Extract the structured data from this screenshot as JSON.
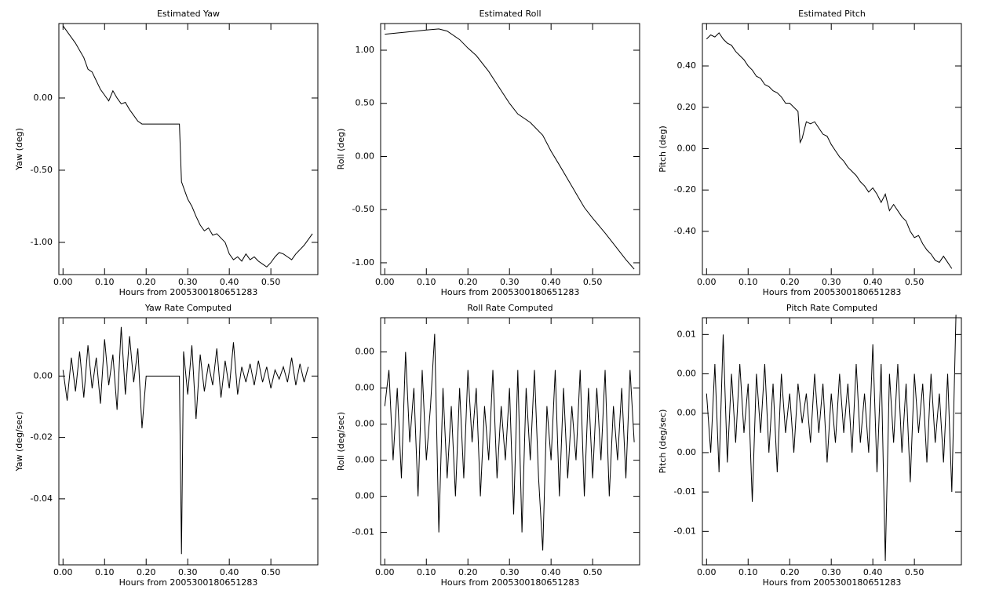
{
  "chart_data": [
    {
      "type": "line",
      "title": "Estimated Yaw",
      "x_label": "Hours from 2005300180651283",
      "y_label": "Yaw (deg)",
      "color": "#000000",
      "xlim": [
        -0.01,
        0.613
      ],
      "ylim": [
        -1.223,
        0.516
      ],
      "xticks": [
        {
          "value": 0,
          "label": "0.00"
        },
        {
          "value": 0.1,
          "label": "0.10"
        },
        {
          "value": 0.2,
          "label": "0.20"
        },
        {
          "value": 0.3,
          "label": "0.30"
        },
        {
          "value": 0.4,
          "label": "0.40"
        },
        {
          "value": 0.5,
          "label": "0.50"
        }
      ],
      "yticks": [
        {
          "value": 0,
          "label": "0.00"
        },
        {
          "value": -0.5,
          "label": "-0.50"
        },
        {
          "value": -1,
          "label": "-1.00"
        }
      ],
      "x": [
        0,
        0.01,
        0.02,
        0.03,
        0.04,
        0.05,
        0.06,
        0.07,
        0.08,
        0.09,
        0.1,
        0.11,
        0.12,
        0.13,
        0.14,
        0.15,
        0.16,
        0.17,
        0.18,
        0.19,
        0.2,
        0.21,
        0.22,
        0.23,
        0.24,
        0.25,
        0.26,
        0.27,
        0.28,
        0.285,
        0.29,
        0.3,
        0.31,
        0.32,
        0.33,
        0.34,
        0.35,
        0.36,
        0.37,
        0.38,
        0.39,
        0.4,
        0.41,
        0.42,
        0.43,
        0.44,
        0.45,
        0.46,
        0.47,
        0.48,
        0.49,
        0.5,
        0.51,
        0.52,
        0.53,
        0.54,
        0.55,
        0.56,
        0.57,
        0.58,
        0.59,
        0.6
      ],
      "values": [
        0.5,
        0.46,
        0.42,
        0.38,
        0.33,
        0.28,
        0.2,
        0.18,
        0.12,
        0.06,
        0.02,
        -0.02,
        0.05,
        0,
        -0.04,
        -0.03,
        -0.08,
        -0.12,
        -0.16,
        -0.18,
        -0.18,
        -0.18,
        -0.18,
        -0.18,
        -0.18,
        -0.18,
        -0.18,
        -0.18,
        -0.18,
        -0.58,
        -0.62,
        -0.7,
        -0.75,
        -0.82,
        -0.88,
        -0.92,
        -0.9,
        -0.95,
        -0.94,
        -0.97,
        -1,
        -1.08,
        -1.12,
        -1.1,
        -1.13,
        -1.08,
        -1.12,
        -1.1,
        -1.13,
        -1.15,
        -1.17,
        -1.14,
        -1.1,
        -1.07,
        -1.08,
        -1.1,
        -1.12,
        -1.08,
        -1.05,
        -1.02,
        -0.98,
        -0.94
      ]
    },
    {
      "type": "line",
      "title": "Estimated Roll",
      "x_label": "Hours from 2005300180651283",
      "y_label": "Roll (deg)",
      "color": "#000000",
      "xlim": [
        -0.01,
        0.613
      ],
      "ylim": [
        -1.111,
        1.251
      ],
      "xticks": [
        {
          "value": 0,
          "label": "0.00"
        },
        {
          "value": 0.1,
          "label": "0.10"
        },
        {
          "value": 0.2,
          "label": "0.20"
        },
        {
          "value": 0.3,
          "label": "0.30"
        },
        {
          "value": 0.4,
          "label": "0.40"
        },
        {
          "value": 0.5,
          "label": "0.50"
        }
      ],
      "yticks": [
        {
          "value": 1,
          "label": "1.00"
        },
        {
          "value": 0.5,
          "label": "0.50"
        },
        {
          "value": 0,
          "label": "0.00"
        },
        {
          "value": -0.5,
          "label": "-0.50"
        },
        {
          "value": -1,
          "label": "-1.00"
        }
      ],
      "x": [
        0,
        0.05,
        0.1,
        0.13,
        0.15,
        0.18,
        0.2,
        0.22,
        0.25,
        0.28,
        0.3,
        0.32,
        0.35,
        0.38,
        0.4,
        0.42,
        0.45,
        0.48,
        0.5,
        0.53,
        0.55,
        0.58,
        0.6
      ],
      "values": [
        1.15,
        1.17,
        1.19,
        1.2,
        1.18,
        1.1,
        1.02,
        0.95,
        0.8,
        0.62,
        0.5,
        0.4,
        0.32,
        0.2,
        0.05,
        -0.08,
        -0.28,
        -0.48,
        -0.58,
        -0.72,
        -0.82,
        -0.97,
        -1.06
      ]
    },
    {
      "type": "line",
      "title": "Estimated Pitch",
      "x_label": "Hours from 2005300180651283",
      "y_label": "Pitch (deg)",
      "color": "#000000",
      "xlim": [
        -0.01,
        0.613
      ],
      "ylim": [
        -0.609,
        0.605
      ],
      "xticks": [
        {
          "value": 0,
          "label": "0.00"
        },
        {
          "value": 0.1,
          "label": "0.10"
        },
        {
          "value": 0.2,
          "label": "0.20"
        },
        {
          "value": 0.3,
          "label": "0.30"
        },
        {
          "value": 0.4,
          "label": "0.40"
        },
        {
          "value": 0.5,
          "label": "0.50"
        }
      ],
      "yticks": [
        {
          "value": 0.4,
          "label": "0.40"
        },
        {
          "value": 0.2,
          "label": "0.20"
        },
        {
          "value": 0,
          "label": "0.00"
        },
        {
          "value": -0.2,
          "label": "-0.20"
        },
        {
          "value": -0.4,
          "label": "-0.40"
        }
      ],
      "x": [
        0,
        0.01,
        0.02,
        0.03,
        0.04,
        0.05,
        0.06,
        0.07,
        0.08,
        0.09,
        0.1,
        0.11,
        0.12,
        0.13,
        0.14,
        0.15,
        0.16,
        0.17,
        0.18,
        0.19,
        0.2,
        0.21,
        0.22,
        0.225,
        0.23,
        0.24,
        0.25,
        0.26,
        0.27,
        0.28,
        0.29,
        0.3,
        0.31,
        0.32,
        0.33,
        0.34,
        0.35,
        0.36,
        0.37,
        0.38,
        0.39,
        0.4,
        0.41,
        0.42,
        0.43,
        0.44,
        0.45,
        0.46,
        0.47,
        0.48,
        0.49,
        0.5,
        0.51,
        0.52,
        0.53,
        0.54,
        0.55,
        0.56,
        0.57,
        0.58,
        0.59
      ],
      "values": [
        0.53,
        0.55,
        0.54,
        0.56,
        0.53,
        0.51,
        0.5,
        0.47,
        0.45,
        0.43,
        0.4,
        0.38,
        0.35,
        0.34,
        0.31,
        0.3,
        0.28,
        0.27,
        0.25,
        0.22,
        0.22,
        0.2,
        0.18,
        0.03,
        0.05,
        0.13,
        0.12,
        0.13,
        0.1,
        0.07,
        0.06,
        0.02,
        -0.01,
        -0.04,
        -0.06,
        -0.09,
        -0.11,
        -0.13,
        -0.16,
        -0.18,
        -0.21,
        -0.19,
        -0.22,
        -0.26,
        -0.22,
        -0.3,
        -0.27,
        -0.3,
        -0.33,
        -0.35,
        -0.4,
        -0.43,
        -0.42,
        -0.46,
        -0.49,
        -0.51,
        -0.54,
        -0.55,
        -0.52,
        -0.55,
        -0.58
      ]
    },
    {
      "type": "line",
      "title": "Yaw Rate Computed",
      "x_label": "Hours from 2005300180651283",
      "y_label": "Yaw (deg/sec)",
      "color": "#000000",
      "xlim": [
        -0.01,
        0.613
      ],
      "ylim": [
        -0.0615,
        0.019
      ],
      "xticks": [
        {
          "value": 0,
          "label": "0.00"
        },
        {
          "value": 0.1,
          "label": "0.10"
        },
        {
          "value": 0.2,
          "label": "0.20"
        },
        {
          "value": 0.3,
          "label": "0.30"
        },
        {
          "value": 0.4,
          "label": "0.40"
        },
        {
          "value": 0.5,
          "label": "0.50"
        }
      ],
      "yticks": [
        {
          "value": 0,
          "label": "0.00"
        },
        {
          "value": -0.02,
          "label": "-0.02"
        },
        {
          "value": -0.04,
          "label": "-0.04"
        }
      ],
      "x": [
        0,
        0.01,
        0.02,
        0.03,
        0.04,
        0.05,
        0.06,
        0.07,
        0.08,
        0.09,
        0.1,
        0.11,
        0.12,
        0.13,
        0.14,
        0.15,
        0.16,
        0.17,
        0.18,
        0.19,
        0.2,
        0.28,
        0.285,
        0.29,
        0.3,
        0.31,
        0.32,
        0.33,
        0.34,
        0.35,
        0.36,
        0.37,
        0.38,
        0.39,
        0.4,
        0.41,
        0.42,
        0.43,
        0.44,
        0.45,
        0.46,
        0.47,
        0.48,
        0.49,
        0.5,
        0.51,
        0.52,
        0.53,
        0.54,
        0.55,
        0.56,
        0.57,
        0.58,
        0.59
      ],
      "values": [
        0.002,
        -0.008,
        0.006,
        -0.005,
        0.008,
        -0.007,
        0.01,
        -0.004,
        0.006,
        -0.009,
        0.012,
        -0.003,
        0.007,
        -0.011,
        0.016,
        -0.006,
        0.013,
        -0.002,
        0.009,
        -0.017,
        0,
        0,
        -0.058,
        0.008,
        -0.006,
        0.01,
        -0.014,
        0.007,
        -0.005,
        0.004,
        -0.003,
        0.009,
        -0.007,
        0.005,
        -0.004,
        0.011,
        -0.006,
        0.003,
        -0.002,
        0.004,
        -0.003,
        0.005,
        -0.002,
        0.003,
        -0.004,
        0.002,
        -0.001,
        0.003,
        -0.002,
        0.006,
        -0.003,
        0.004,
        -0.002,
        0.003
      ]
    },
    {
      "type": "line",
      "title": "Roll Rate Computed",
      "x_label": "Hours from 2005300180651283",
      "y_label": "Roll (deg/sec)",
      "color": "#000000",
      "xlim": [
        -0.01,
        0.613
      ],
      "ylim": [
        -0.0078,
        0.0059
      ],
      "xticks": [
        {
          "value": 0,
          "label": "0.00"
        },
        {
          "value": 0.1,
          "label": "0.10"
        },
        {
          "value": 0.2,
          "label": "0.20"
        },
        {
          "value": 0.3,
          "label": "0.30"
        },
        {
          "value": 0.4,
          "label": "0.40"
        },
        {
          "value": 0.5,
          "label": "0.50"
        }
      ],
      "yticks": [
        {
          "value": 0.004,
          "label": "0.00"
        },
        {
          "value": 0.002,
          "label": "0.00"
        },
        {
          "value": 0,
          "label": "0.00"
        },
        {
          "value": -0.002,
          "label": "0.00"
        },
        {
          "value": -0.004,
          "label": "0.00"
        },
        {
          "value": -0.006,
          "label": "-0.01"
        }
      ],
      "x": [
        0,
        0.01,
        0.02,
        0.03,
        0.04,
        0.05,
        0.06,
        0.07,
        0.08,
        0.09,
        0.1,
        0.11,
        0.12,
        0.13,
        0.14,
        0.15,
        0.16,
        0.17,
        0.18,
        0.19,
        0.2,
        0.21,
        0.22,
        0.23,
        0.24,
        0.25,
        0.26,
        0.27,
        0.28,
        0.29,
        0.3,
        0.31,
        0.32,
        0.33,
        0.34,
        0.35,
        0.36,
        0.37,
        0.38,
        0.39,
        0.4,
        0.41,
        0.42,
        0.43,
        0.44,
        0.45,
        0.46,
        0.47,
        0.48,
        0.49,
        0.5,
        0.51,
        0.52,
        0.53,
        0.54,
        0.55,
        0.56,
        0.57,
        0.58,
        0.59,
        0.6
      ],
      "values": [
        0.001,
        0.003,
        -0.002,
        0.002,
        -0.003,
        0.004,
        -0.001,
        0.002,
        -0.004,
        0.003,
        -0.002,
        0.001,
        0.005,
        -0.006,
        0.002,
        -0.003,
        0.001,
        -0.004,
        0.002,
        -0.003,
        0.003,
        -0.001,
        0.002,
        -0.004,
        0.001,
        -0.002,
        0.003,
        -0.003,
        0.001,
        -0.002,
        0.002,
        -0.005,
        0.003,
        -0.006,
        0.002,
        -0.002,
        0.003,
        -0.003,
        -0.007,
        0.001,
        -0.002,
        0.003,
        -0.004,
        0.002,
        -0.003,
        0.001,
        -0.002,
        0.003,
        -0.004,
        0.002,
        -0.003,
        0.002,
        -0.002,
        0.003,
        -0.004,
        0.001,
        -0.002,
        0.002,
        -0.003,
        0.003,
        -0.001
      ]
    },
    {
      "type": "line",
      "title": "Pitch Rate Computed",
      "x_label": "Hours from 2005300180651283",
      "y_label": "Pitch (deg/sec)",
      "color": "#000000",
      "xlim": [
        -0.01,
        0.613
      ],
      "ylim": [
        -0.0154,
        0.0097
      ],
      "xticks": [
        {
          "value": 0,
          "label": "0.00"
        },
        {
          "value": 0.1,
          "label": "0.10"
        },
        {
          "value": 0.2,
          "label": "0.20"
        },
        {
          "value": 0.3,
          "label": "0.30"
        },
        {
          "value": 0.4,
          "label": "0.40"
        },
        {
          "value": 0.5,
          "label": "0.50"
        }
      ],
      "yticks": [
        {
          "value": 0.008,
          "label": "0.01"
        },
        {
          "value": 0.004,
          "label": "0.00"
        },
        {
          "value": 0,
          "label": "0.00"
        },
        {
          "value": -0.004,
          "label": "0.00"
        },
        {
          "value": -0.008,
          "label": "-0.01"
        },
        {
          "value": -0.012,
          "label": "-0.01"
        }
      ],
      "x": [
        0,
        0.01,
        0.02,
        0.03,
        0.04,
        0.05,
        0.06,
        0.07,
        0.08,
        0.09,
        0.1,
        0.11,
        0.12,
        0.13,
        0.14,
        0.15,
        0.16,
        0.17,
        0.18,
        0.19,
        0.2,
        0.21,
        0.22,
        0.23,
        0.24,
        0.25,
        0.26,
        0.27,
        0.28,
        0.29,
        0.3,
        0.31,
        0.32,
        0.33,
        0.34,
        0.35,
        0.36,
        0.37,
        0.38,
        0.39,
        0.4,
        0.41,
        0.42,
        0.43,
        0.44,
        0.45,
        0.46,
        0.47,
        0.48,
        0.49,
        0.5,
        0.51,
        0.52,
        0.53,
        0.54,
        0.55,
        0.56,
        0.57,
        0.58,
        0.59,
        0.6
      ],
      "values": [
        0.002,
        -0.004,
        0.005,
        -0.006,
        0.008,
        -0.005,
        0.004,
        -0.003,
        0.005,
        -0.002,
        0.003,
        -0.009,
        0.004,
        -0.002,
        0.005,
        -0.004,
        0.003,
        -0.006,
        0.004,
        -0.002,
        0.002,
        -0.004,
        0.003,
        -0.001,
        0.002,
        -0.003,
        0.004,
        -0.002,
        0.003,
        -0.005,
        0.002,
        -0.003,
        0.004,
        -0.002,
        0.003,
        -0.004,
        0.005,
        -0.003,
        0.002,
        -0.004,
        0.007,
        -0.006,
        0.005,
        -0.015,
        0.004,
        -0.003,
        0.005,
        -0.004,
        0.003,
        -0.007,
        0.004,
        -0.002,
        0.003,
        -0.005,
        0.004,
        -0.003,
        0.002,
        -0.005,
        0.004,
        -0.008,
        0.01
      ]
    }
  ]
}
